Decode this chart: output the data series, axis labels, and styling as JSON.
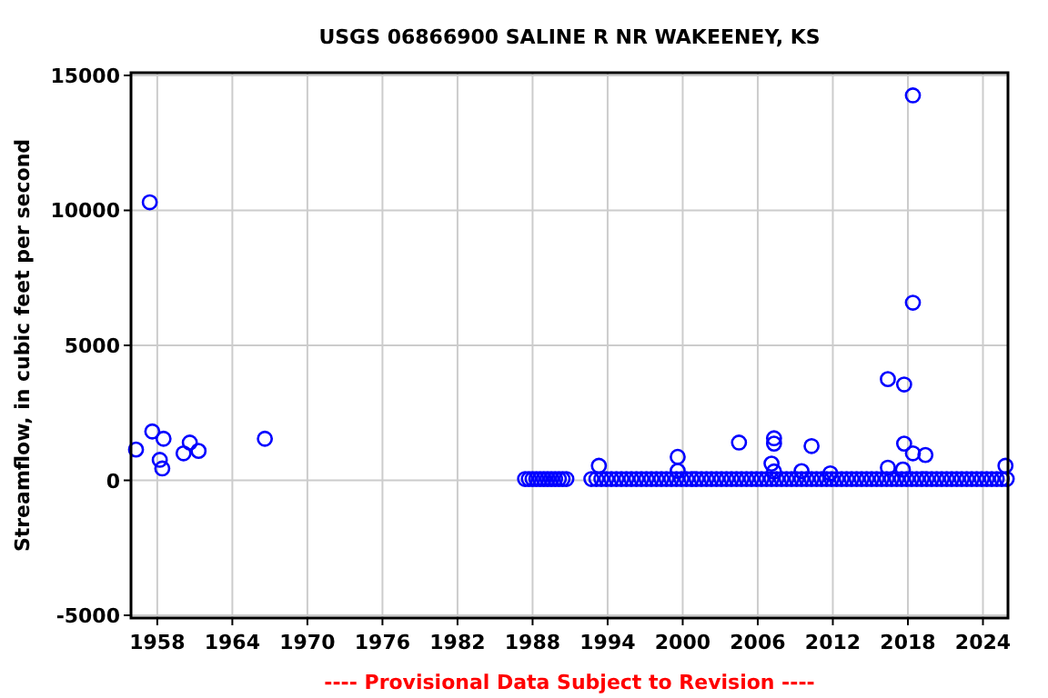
{
  "chart_data": {
    "type": "scatter",
    "title": "USGS 06866900 SALINE R NR WAKEENEY, KS",
    "ylabel": "Streamflow, in cubic feet per second",
    "annotations": [
      "---- Provisional Data Subject to Revision ----"
    ],
    "xlim": [
      1955.9,
      2026
    ],
    "xticks": [
      1958,
      1964,
      1970,
      1976,
      1982,
      1988,
      1994,
      2000,
      2006,
      2012,
      2018,
      2024
    ],
    "ylim": [
      -5100,
      15100
    ],
    "yticks": [
      -5000,
      0,
      5000,
      10000,
      15000
    ],
    "grid": true,
    "marker": "circle",
    "series": [
      {
        "color": "#0000ff",
        "x": [
          1956.3,
          1957.4,
          1957.6,
          1958.2,
          1958.4,
          1958.5,
          1960.1,
          1960.6,
          1961.3,
          1966.6,
          1993.3,
          1999.6,
          1999.6,
          2004.5,
          2007.1,
          2007.3,
          2007.3,
          2007.3,
          2009.5,
          2010.3,
          2011.8,
          2016.4,
          2016.4,
          2017.6,
          2017.7,
          2017.7,
          2018.4,
          2018.4,
          2018.4,
          2019.4,
          2025.8
        ],
        "values": [
          1140,
          10300,
          1810,
          760,
          440,
          1540,
          1000,
          1400,
          1090,
          1540,
          540,
          870,
          350,
          1400,
          620,
          1560,
          1360,
          330,
          340,
          1270,
          260,
          3750,
          470,
          400,
          3550,
          1360,
          14260,
          6580,
          1000,
          940,
          540
        ]
      },
      {
        "color": "#0000ff",
        "x": [
          1987.4,
          1987.7,
          1988.0,
          1988.3,
          1988.6,
          1988.9,
          1989.2,
          1989.5,
          1989.8,
          1990.1,
          1990.4,
          1990.7,
          1992.7,
          1993.1,
          1993.5,
          1993.9,
          1994.3,
          1994.7,
          1995.1,
          1995.5,
          1995.9,
          1996.3,
          1996.7,
          1997.1,
          1997.5,
          1997.9,
          1998.3,
          1998.7,
          1999.1,
          1999.5,
          1999.9,
          2000.3,
          2000.7,
          2001.1,
          2001.5,
          2001.9,
          2002.3,
          2002.7,
          2003.1,
          2003.5,
          2003.9,
          2004.3,
          2004.7,
          2005.1,
          2005.5,
          2005.9,
          2006.3,
          2006.7,
          2007.1,
          2007.5,
          2007.9,
          2008.3,
          2008.7,
          2009.1,
          2009.5,
          2009.9,
          2010.3,
          2010.7,
          2011.1,
          2011.5,
          2011.9,
          2012.3,
          2012.7,
          2013.1,
          2013.5,
          2013.9,
          2014.3,
          2014.7,
          2015.1,
          2015.5,
          2015.9,
          2016.3,
          2016.7,
          2017.1,
          2017.5,
          2017.9,
          2018.3,
          2018.7,
          2019.1,
          2019.5,
          2019.9,
          2020.3,
          2020.7,
          2021.1,
          2021.5,
          2021.9,
          2022.3,
          2022.7,
          2023.1,
          2023.5,
          2023.9,
          2024.3,
          2024.7,
          2025.1,
          2025.5,
          2025.9
        ],
        "values": [
          50,
          50,
          50,
          50,
          50,
          50,
          50,
          50,
          50,
          50,
          50,
          50,
          50,
          50,
          50,
          50,
          50,
          50,
          50,
          50,
          50,
          50,
          50,
          50,
          50,
          50,
          50,
          50,
          50,
          50,
          50,
          50,
          50,
          50,
          50,
          50,
          50,
          50,
          50,
          50,
          50,
          50,
          50,
          50,
          50,
          50,
          50,
          50,
          50,
          50,
          50,
          50,
          50,
          50,
          50,
          50,
          50,
          50,
          50,
          50,
          50,
          50,
          50,
          50,
          50,
          50,
          50,
          50,
          50,
          50,
          50,
          50,
          50,
          50,
          50,
          50,
          50,
          50,
          50,
          50,
          50,
          50,
          50,
          50,
          50,
          50,
          50,
          50,
          50,
          50,
          50,
          50,
          50,
          50,
          50,
          50
        ]
      }
    ]
  }
}
